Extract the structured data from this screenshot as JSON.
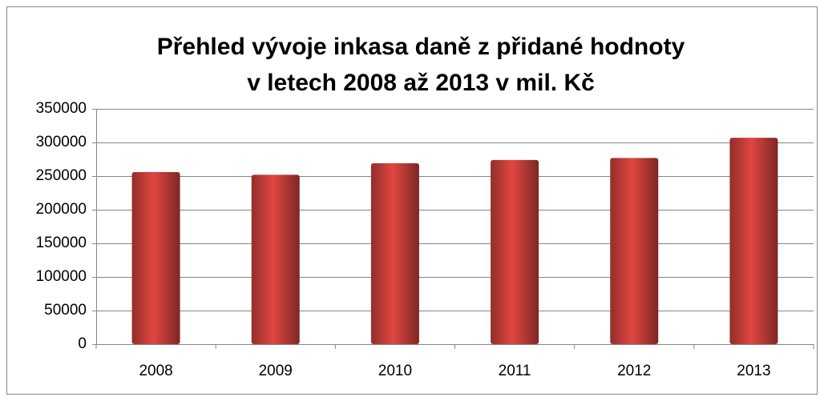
{
  "chart_data": {
    "type": "bar",
    "title": [
      "Přehled vývoje inkasa daně z přidané hodnoty",
      "v letech 2008 až 2013 v mil. Kč"
    ],
    "categories": [
      "2008",
      "2009",
      "2010",
      "2011",
      "2012",
      "2013"
    ],
    "values": [
      256000,
      252000,
      269000,
      274000,
      277000,
      307000
    ],
    "color": "#d0413c",
    "ylim": [
      0,
      350000
    ],
    "yticks": [
      0,
      50000,
      100000,
      150000,
      200000,
      250000,
      300000,
      350000
    ],
    "grid": true
  }
}
